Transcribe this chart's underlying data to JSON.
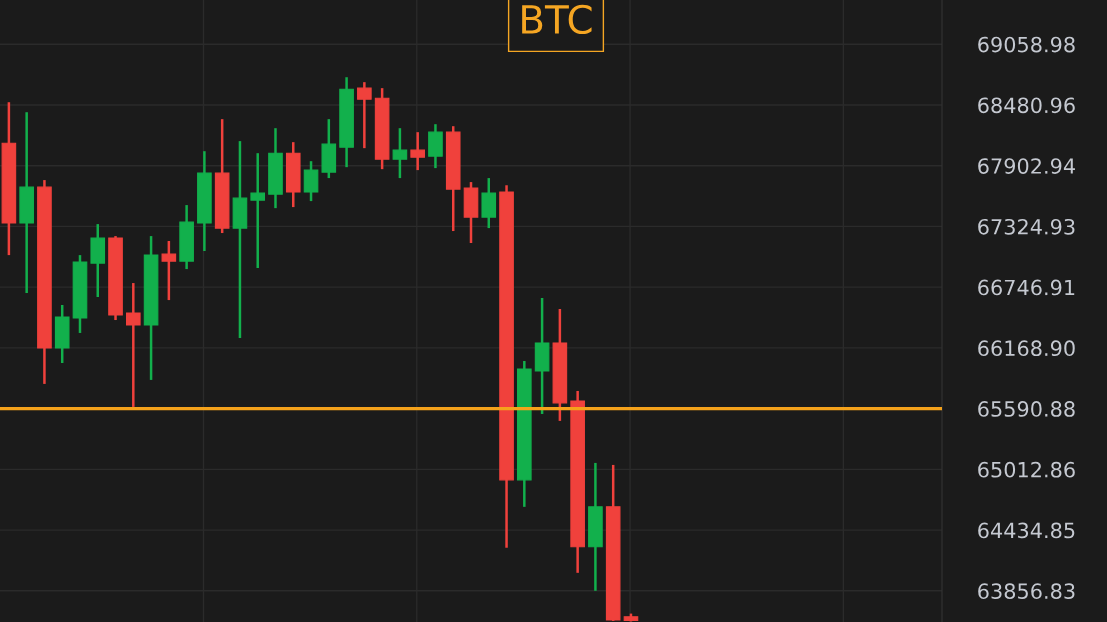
{
  "chart_data": {
    "type": "candlestick",
    "title": "BTC",
    "categories": [
      null,
      null,
      null,
      null,
      null,
      null,
      null,
      null,
      null,
      null,
      null,
      null,
      null,
      null,
      null,
      null,
      null,
      null,
      null,
      null,
      null,
      null,
      null,
      null,
      null,
      null,
      null,
      null,
      null,
      null,
      null,
      null,
      null,
      null,
      null,
      null,
      null,
      null,
      null,
      null,
      null,
      null,
      null,
      null,
      null,
      null,
      null,
      null,
      null,
      null,
      null,
      null,
      null
    ],
    "ohlc": [
      [
        68117,
        68507,
        67052,
        67357
      ],
      [
        67357,
        68412,
        66691,
        67699
      ],
      [
        67699,
        67766,
        65826,
        66168
      ],
      [
        66168,
        66577,
        66025,
        66463
      ],
      [
        66453,
        67052,
        66311,
        66986
      ],
      [
        66976,
        67347,
        66653,
        67214
      ],
      [
        67214,
        67233,
        66434,
        66482
      ],
      [
        66501,
        66786,
        65607,
        66387
      ],
      [
        66387,
        67233,
        65864,
        67052
      ],
      [
        67062,
        67186,
        66624,
        66995
      ],
      [
        66995,
        67528,
        66919,
        67366
      ],
      [
        67357,
        68041,
        67091,
        67832
      ],
      [
        67832,
        68346,
        67262,
        67309
      ],
      [
        67309,
        68137,
        66263,
        67594
      ],
      [
        67575,
        68022,
        66929,
        67642
      ],
      [
        67632,
        68260,
        67499,
        68022
      ],
      [
        68022,
        68127,
        67509,
        67652
      ],
      [
        67652,
        67946,
        67566,
        67861
      ],
      [
        67842,
        68346,
        67785,
        68108
      ],
      [
        68079,
        68745,
        67889,
        68631
      ],
      [
        68641,
        68698,
        68070,
        68536
      ],
      [
        68545,
        68641,
        67870,
        67965
      ],
      [
        67965,
        68260,
        67785,
        68051
      ],
      [
        68051,
        68222,
        67861,
        67984
      ],
      [
        67994,
        68298,
        67880,
        68222
      ],
      [
        68222,
        68279,
        67281,
        67680
      ],
      [
        67690,
        67747,
        67167,
        67414
      ],
      [
        67414,
        67785,
        67309,
        67642
      ],
      [
        67652,
        67718,
        64266,
        64913
      ],
      [
        64913,
        66044,
        64656,
        65968
      ],
      [
        65949,
        66644,
        65540,
        66216
      ],
      [
        66216,
        66539,
        65474,
        65645
      ],
      [
        65664,
        65759,
        64028,
        64276
      ],
      [
        64276,
        65074,
        63857,
        64656
      ],
      [
        64656,
        65055,
        63570,
        63580
      ],
      [
        63610,
        63640,
        63565,
        63575
      ],
      null,
      null,
      null,
      null,
      null,
      null,
      null,
      null,
      null,
      null,
      null,
      null,
      null,
      null,
      null,
      null,
      null
    ],
    "colors": [
      "#f0413c",
      "#12b04c",
      "#f0413c",
      "#12b04c",
      "#12b04c",
      "#12b04c",
      "#f0413c",
      "#f0413c",
      "#12b04c",
      "#f0413c",
      "#12b04c",
      "#12b04c",
      "#f0413c",
      "#12b04c",
      "#12b04c",
      "#12b04c",
      "#f0413c",
      "#12b04c",
      "#12b04c",
      "#12b04c",
      "#f0413c",
      "#f0413c",
      "#12b04c",
      "#f0413c",
      "#12b04c",
      "#f0413c",
      "#f0413c",
      "#12b04c",
      "#f0413c",
      "#12b04c",
      "#12b04c",
      "#f0413c",
      "#f0413c",
      "#12b04c",
      "#f0413c",
      "#f0413c",
      null,
      null,
      null,
      null,
      null,
      null,
      null,
      null,
      null,
      null,
      null,
      null,
      null,
      null,
      null,
      null,
      null
    ],
    "ylim": [
      63560,
      69480
    ],
    "yticks": [
      {
        "value": 69058.98,
        "label": "69058.98"
      },
      {
        "value": 68480.96,
        "label": "68480.96"
      },
      {
        "value": 67902.94,
        "label": "67902.94"
      },
      {
        "value": 67324.93,
        "label": "67324.93"
      },
      {
        "value": 66746.91,
        "label": "66746.91"
      },
      {
        "value": 66168.9,
        "label": "66168.90"
      },
      {
        "value": 65590.88,
        "label": "65590.88"
      },
      {
        "value": 65012.86,
        "label": "65012.86"
      },
      {
        "value": 64434.85,
        "label": "64434.85"
      },
      {
        "value": 63856.83,
        "label": "63856.83"
      }
    ],
    "ref_lines": [
      {
        "axis": "y",
        "value": 65590.88,
        "label": null,
        "color": "#f5a21b"
      }
    ],
    "grid": true,
    "tick_labels": "y"
  }
}
